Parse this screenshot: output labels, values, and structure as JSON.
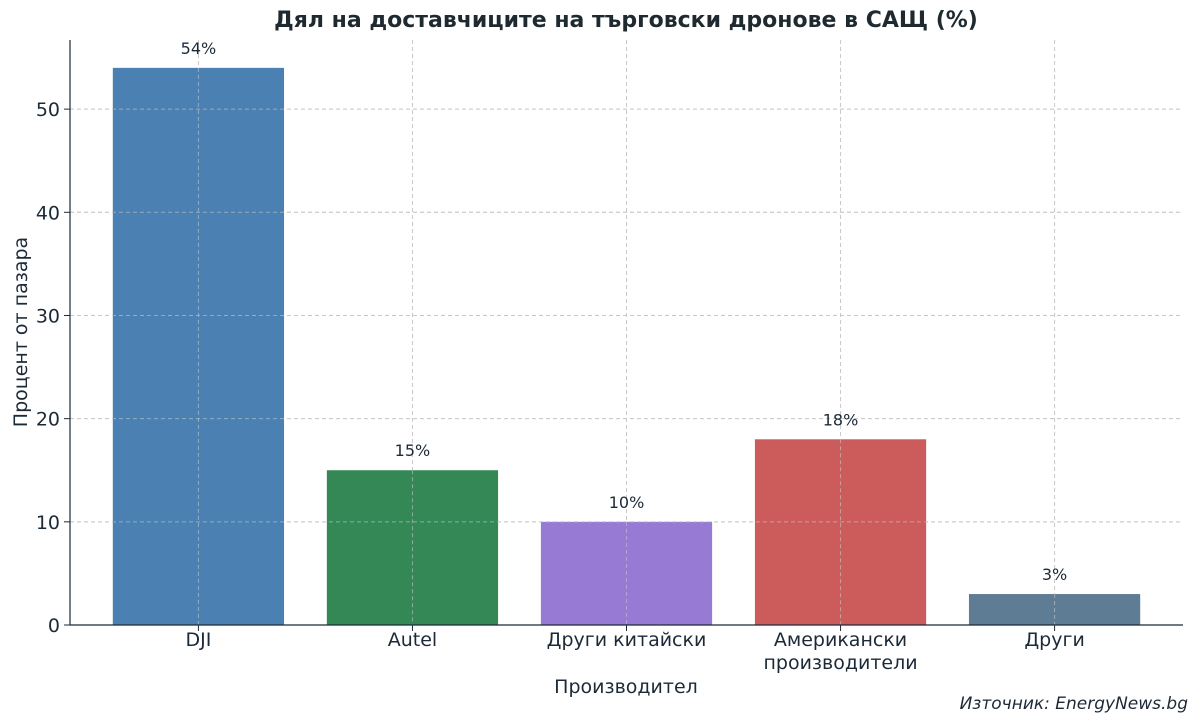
{
  "chart_data": {
    "type": "bar",
    "title": "Дял на доставчиците на търговски дронове в САЩ (%)",
    "xlabel": "Производител",
    "ylabel": "Процент от пазара",
    "categories": [
      [
        "DJI"
      ],
      [
        "Autel"
      ],
      [
        "Други китайски"
      ],
      [
        "Американски",
        "производители"
      ],
      [
        "Други"
      ]
    ],
    "values": [
      54,
      15,
      10,
      18,
      3
    ],
    "data_labels": [
      "54%",
      "15%",
      "10%",
      "18%",
      "3%"
    ],
    "colors": [
      "#4a80b2",
      "#338855",
      "#977ad4",
      "#cc5c5c",
      "#5f7c95"
    ],
    "ylim": [
      0,
      56.7
    ],
    "yticks": [
      0,
      10,
      20,
      30,
      40,
      50
    ],
    "grid": true,
    "source": "Източник: EnergyNews.bg"
  }
}
